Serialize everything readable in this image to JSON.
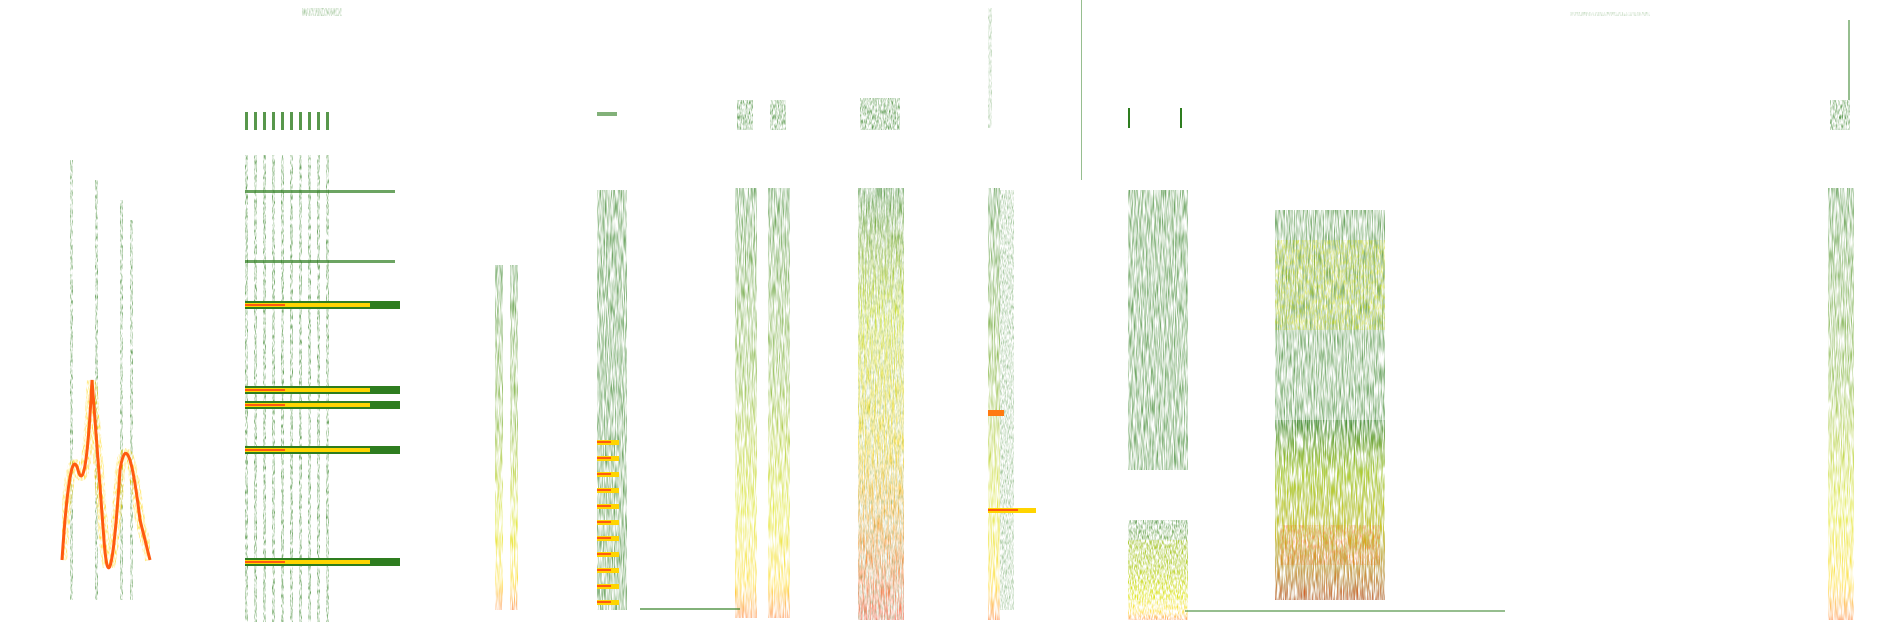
{
  "figure": {
    "description_kind": "spectrogram-image",
    "background_color": "#ffffff",
    "palette": {
      "low": "#2e7d1f",
      "mid": "#cfe000",
      "high": "#ffd400",
      "peak": "#ff3a1a"
    },
    "segments": [
      {
        "name": "segment-1-chirps"
      },
      {
        "name": "segment-2-harmonic-stack"
      },
      {
        "name": "segment-3-thin-pair"
      },
      {
        "name": "segment-4-pulse-train"
      },
      {
        "name": "segment-5-twin-bands"
      },
      {
        "name": "segment-6-wide-band"
      },
      {
        "name": "segment-7-narrow-band"
      },
      {
        "name": "segment-8-block-band"
      },
      {
        "name": "segment-9-cloud"
      },
      {
        "name": "segment-10-edge-band"
      }
    ]
  }
}
